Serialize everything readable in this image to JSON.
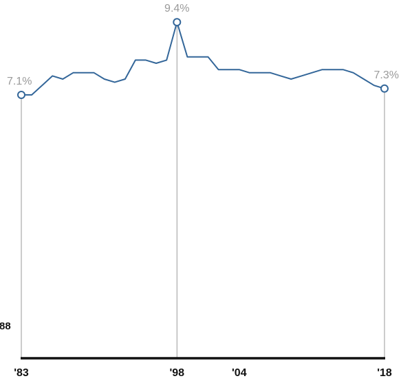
{
  "chart_data": {
    "type": "line",
    "title": "",
    "xlabel": "",
    "ylabel": "",
    "x": [
      1983,
      1984,
      1985,
      1986,
      1987,
      1988,
      1989,
      1990,
      1991,
      1992,
      1993,
      1994,
      1995,
      1996,
      1997,
      1998,
      1999,
      2000,
      2001,
      2002,
      2003,
      2004,
      2005,
      2006,
      2007,
      2008,
      2009,
      2010,
      2011,
      2012,
      2013,
      2014,
      2015,
      2016,
      2017,
      2018
    ],
    "series": [
      {
        "values": [
          7.1,
          7.1,
          7.4,
          7.7,
          7.6,
          7.8,
          7.8,
          7.8,
          7.6,
          7.5,
          7.6,
          8.2,
          8.2,
          8.1,
          8.2,
          9.4,
          8.3,
          8.3,
          8.3,
          7.9,
          7.9,
          7.9,
          7.8,
          7.8,
          7.8,
          7.7,
          7.6,
          7.7,
          7.8,
          7.9,
          7.9,
          7.9,
          7.8,
          7.6,
          7.4,
          7.3
        ],
        "color": "#336699"
      }
    ],
    "x_ticks": [
      {
        "year": 1983,
        "label": "'83"
      },
      {
        "year": 1998,
        "label": "'98"
      },
      {
        "year": 2004,
        "label": "'04"
      },
      {
        "year": 2018,
        "label": "'18"
      }
    ],
    "highlights": [
      {
        "year": 1983,
        "value": 7.1,
        "label": "7.1%"
      },
      {
        "year": 1998,
        "value": 9.4,
        "label": "9.4%"
      },
      {
        "year": 2018,
        "value": 7.3,
        "label": "7.3%"
      }
    ],
    "left_label": "88",
    "grid": false,
    "colors": {
      "line": "#336699",
      "axis": "#111111",
      "droplines": "#999999",
      "point_labels": "#9a9a9a"
    }
  }
}
